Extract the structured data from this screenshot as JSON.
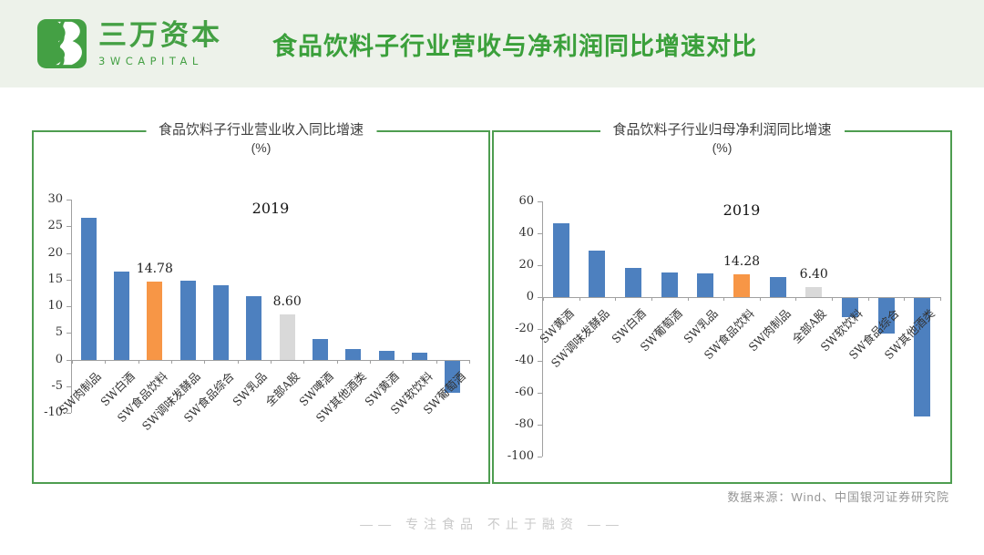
{
  "palette": {
    "bar_blue": "#4d80bf",
    "bar_orange": "#f79646",
    "bar_gray": "#d9d9d9",
    "brand_green": "#44a044",
    "border_green": "#4e9d50"
  },
  "header": {
    "brand_cn": "三万资本",
    "brand_en": "3WCAPITAL",
    "logo_icon": "3w-road-logo",
    "title": "食品饮料子行业营收与净利润同比增速对比"
  },
  "charts_panel": {
    "source_note": "数据来源：Wind、中国银河证券研究院"
  },
  "footer": {
    "slogan": "—— 专注食品 不止于融资 ——"
  },
  "chart_data": [
    {
      "type": "bar",
      "title": "食品饮料子行业营业收入同比增速",
      "subtitle": "(%)",
      "annotation": "2019",
      "categories": [
        "SW肉制品",
        "SW白酒",
        "SW食品饮料",
        "SW调味发酵品",
        "SW食品综合",
        "SW乳品",
        "全部A股",
        "SW啤酒",
        "SW其他酒类",
        "SW黄酒",
        "SW软饮料",
        "SW葡萄酒"
      ],
      "values": [
        26.7,
        16.6,
        14.78,
        14.9,
        14.1,
        12.0,
        8.6,
        3.9,
        2.0,
        1.7,
        1.3,
        -6.0
      ],
      "bar_colors": [
        "blue",
        "blue",
        "orange",
        "blue",
        "blue",
        "blue",
        "gray",
        "blue",
        "blue",
        "blue",
        "blue",
        "blue"
      ],
      "data_labels": {
        "2": "14.78",
        "6": "8.60"
      },
      "xlabel": "",
      "ylabel": "",
      "ylim": [
        -10,
        30
      ],
      "ytick_step": 5,
      "grid": false,
      "legend_position": "none"
    },
    {
      "type": "bar",
      "title": "食品饮料子行业归母净利润同比增速",
      "subtitle": "(%)",
      "annotation": "2019",
      "categories": [
        "SW黄酒",
        "SW调味发酵品",
        "SW白酒",
        "SW葡萄酒",
        "SW乳品",
        "SW食品饮料",
        "SW肉制品",
        "全部A股",
        "SW软饮料",
        "SW食品综合",
        "SW其他酒类"
      ],
      "values": [
        46.5,
        29.2,
        18.2,
        15.6,
        15.1,
        14.28,
        12.6,
        6.4,
        -12.0,
        -22.5,
        -74.0
      ],
      "bar_colors": [
        "blue",
        "blue",
        "blue",
        "blue",
        "blue",
        "orange",
        "blue",
        "gray",
        "blue",
        "blue",
        "blue"
      ],
      "data_labels": {
        "5": "14.28",
        "7": "6.40"
      },
      "xlabel": "",
      "ylabel": "",
      "ylim": [
        -100,
        60
      ],
      "ytick_step": 20,
      "grid": false,
      "legend_position": "none"
    }
  ]
}
